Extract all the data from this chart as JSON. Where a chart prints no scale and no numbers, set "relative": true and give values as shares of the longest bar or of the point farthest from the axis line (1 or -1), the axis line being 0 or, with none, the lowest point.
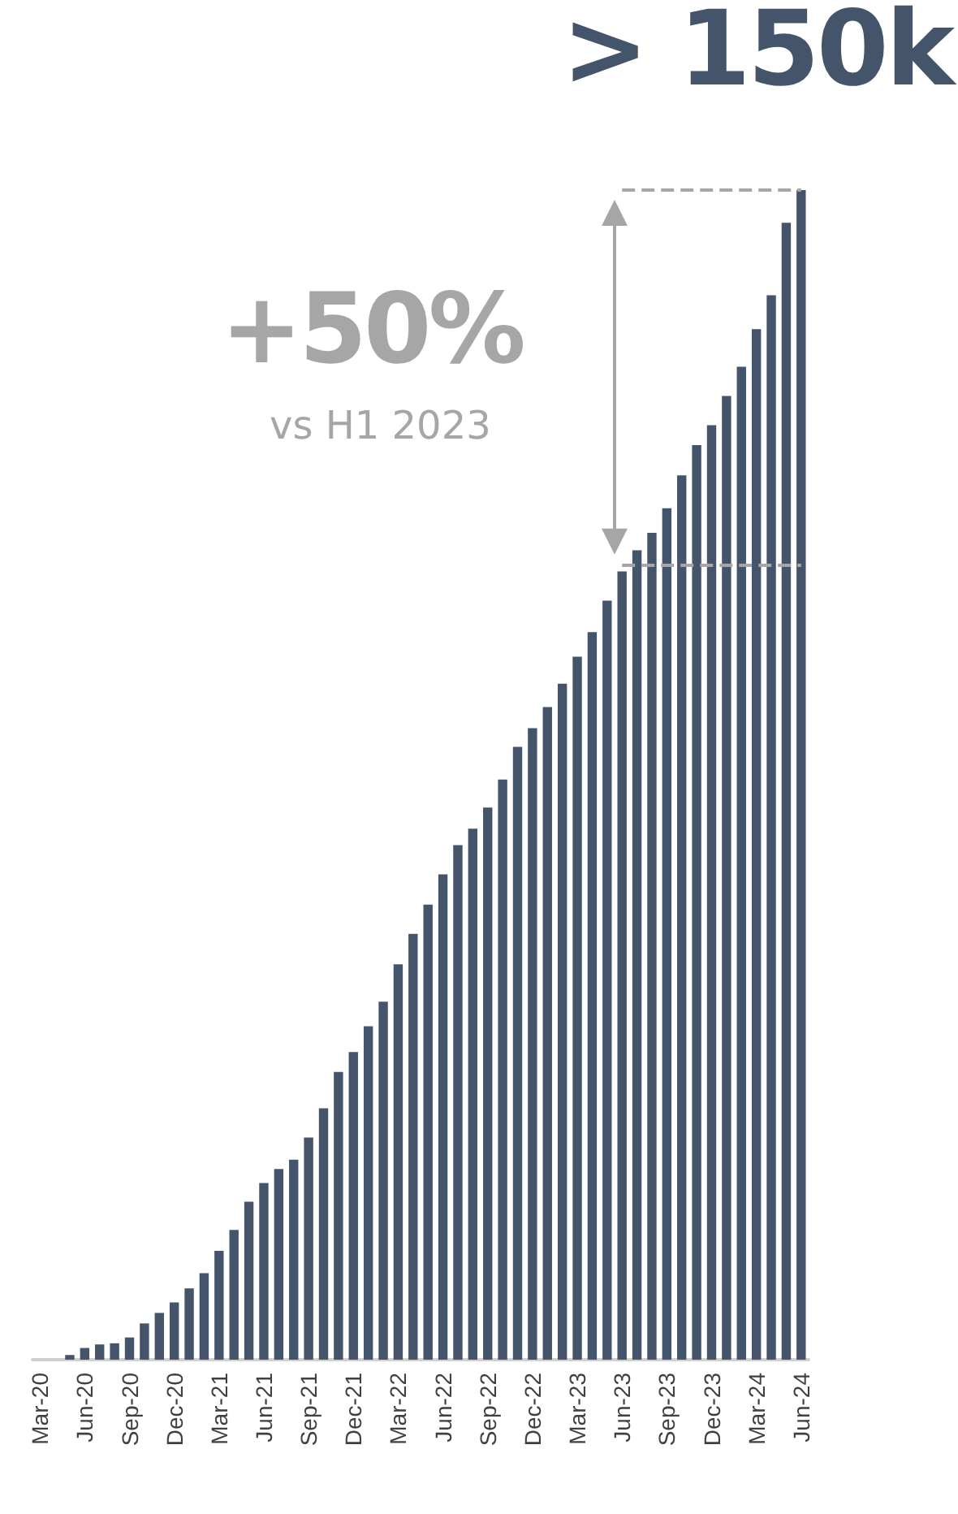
{
  "chart_data": {
    "type": "bar",
    "relative": true,
    "title": "> 150k",
    "annotations": [
      "+50%",
      "vs H1 2023"
    ],
    "categories": [
      "Mar-20",
      null,
      null,
      "Jun-20",
      null,
      null,
      "Sep-20",
      null,
      null,
      "Dec-20",
      null,
      null,
      "Mar-21",
      null,
      null,
      "Jun-21",
      null,
      null,
      "Sep-21",
      null,
      null,
      "Dec-21",
      null,
      null,
      "Mar-22",
      null,
      null,
      "Jun-22",
      null,
      null,
      "Sep-22",
      null,
      null,
      "Dec-22",
      null,
      null,
      "Mar-23",
      null,
      null,
      "Jun-23",
      null,
      null,
      "Sep-23",
      null,
      null,
      "Dec-23",
      null,
      null,
      "Mar-24",
      null,
      null,
      "Jun-24"
    ],
    "color": "#44546a",
    "values": [
      0,
      0,
      0.004,
      0.01,
      0.013,
      0.014,
      0.019,
      0.031,
      0.04,
      0.049,
      0.061,
      0.074,
      0.093,
      0.111,
      0.135,
      0.151,
      0.163,
      0.171,
      0.19,
      0.215,
      0.246,
      0.263,
      0.285,
      0.306,
      0.338,
      0.364,
      0.389,
      0.415,
      0.44,
      0.454,
      0.472,
      0.496,
      0.524,
      0.54,
      0.558,
      0.578,
      0.601,
      0.622,
      0.649,
      0.674,
      0.692,
      0.707,
      0.728,
      0.756,
      0.782,
      0.799,
      0.824,
      0.849,
      0.881,
      0.91,
      0.972,
      1
    ],
    "ref_lines": [
      {
        "axis": "y",
        "value": 1,
        "color": "#a6a6a6",
        "line_style": "dashed"
      },
      {
        "axis": "y",
        "value": 0.68,
        "color": "#a6a6a6",
        "line_style": "dashed"
      }
    ],
    "data_labels": false
  }
}
